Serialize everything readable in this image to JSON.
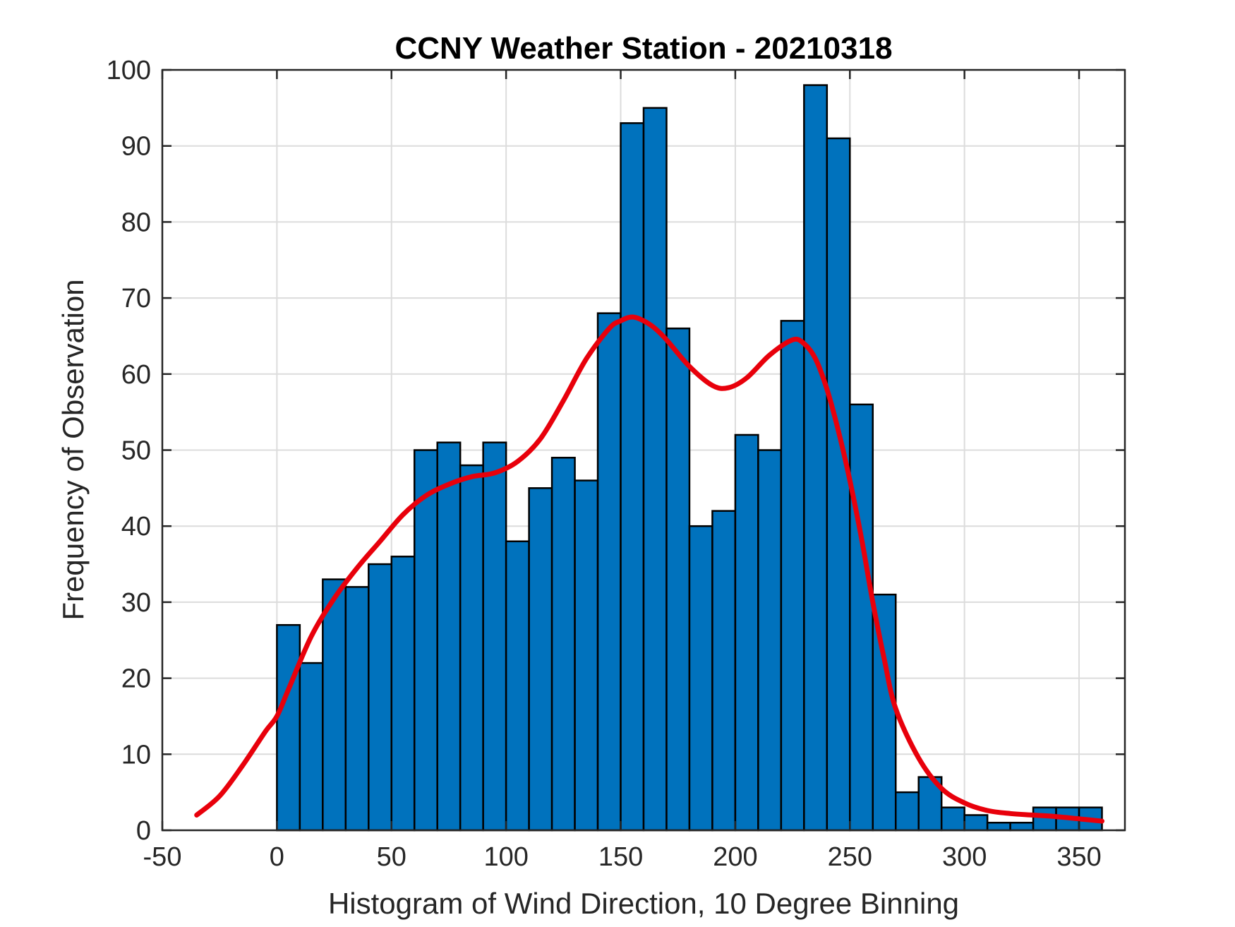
{
  "chart_data": {
    "type": "bar",
    "title": "CCNY Weather Station - 20210318",
    "xlabel": "Histogram of Wind Direction, 10 Degree Binning",
    "ylabel": "Frequency of Observation",
    "xlim": [
      -50,
      370
    ],
    "ylim": [
      0,
      100
    ],
    "xticks": [
      -50,
      0,
      50,
      100,
      150,
      200,
      250,
      300,
      350
    ],
    "yticks": [
      0,
      10,
      20,
      30,
      40,
      50,
      60,
      70,
      80,
      90,
      100
    ],
    "bin_width": 10,
    "grid": true,
    "bins": [
      {
        "start": 0,
        "value": 27
      },
      {
        "start": 10,
        "value": 22
      },
      {
        "start": 20,
        "value": 33
      },
      {
        "start": 30,
        "value": 32
      },
      {
        "start": 40,
        "value": 35
      },
      {
        "start": 50,
        "value": 36
      },
      {
        "start": 60,
        "value": 50
      },
      {
        "start": 70,
        "value": 51
      },
      {
        "start": 80,
        "value": 48
      },
      {
        "start": 90,
        "value": 51
      },
      {
        "start": 100,
        "value": 38
      },
      {
        "start": 110,
        "value": 45
      },
      {
        "start": 120,
        "value": 49
      },
      {
        "start": 130,
        "value": 46
      },
      {
        "start": 140,
        "value": 68
      },
      {
        "start": 150,
        "value": 93
      },
      {
        "start": 160,
        "value": 95
      },
      {
        "start": 170,
        "value": 66
      },
      {
        "start": 180,
        "value": 40
      },
      {
        "start": 190,
        "value": 42
      },
      {
        "start": 200,
        "value": 52
      },
      {
        "start": 210,
        "value": 50
      },
      {
        "start": 220,
        "value": 67
      },
      {
        "start": 230,
        "value": 98
      },
      {
        "start": 240,
        "value": 91
      },
      {
        "start": 250,
        "value": 56
      },
      {
        "start": 260,
        "value": 31
      },
      {
        "start": 270,
        "value": 5
      },
      {
        "start": 280,
        "value": 7
      },
      {
        "start": 290,
        "value": 3
      },
      {
        "start": 300,
        "value": 2
      },
      {
        "start": 310,
        "value": 1
      },
      {
        "start": 320,
        "value": 1
      },
      {
        "start": 330,
        "value": 3
      },
      {
        "start": 340,
        "value": 3
      },
      {
        "start": 350,
        "value": 3
      }
    ],
    "fit_curve": {
      "x": [
        -35,
        -25,
        -15,
        -5,
        0,
        5,
        15,
        25,
        35,
        45,
        55,
        65,
        75,
        85,
        95,
        105,
        115,
        125,
        135,
        145,
        150,
        155,
        160,
        165,
        170,
        180,
        190,
        197,
        205,
        215,
        225,
        230,
        235,
        240,
        245,
        250,
        255,
        260,
        265,
        270,
        280,
        290,
        300,
        310,
        320,
        330,
        340,
        350,
        360
      ],
      "y": [
        2,
        4.5,
        8.5,
        13,
        15,
        18.5,
        25.5,
        30.5,
        34.5,
        38,
        41.5,
        44,
        45.5,
        46.5,
        47,
        48.5,
        51.5,
        56.5,
        62,
        66,
        67,
        67.5,
        67,
        66,
        64.5,
        61,
        58.5,
        58.2,
        59.5,
        62.5,
        64.5,
        64,
        62,
        58,
        52.5,
        46,
        38.5,
        30,
        22.5,
        16,
        9.5,
        5.5,
        3.6,
        2.6,
        2.2,
        2,
        1.8,
        1.5,
        1.2
      ]
    },
    "colors": {
      "bar_fill": "#0072bd",
      "bar_edge": "#000000",
      "fit_line": "#e8000b"
    }
  }
}
